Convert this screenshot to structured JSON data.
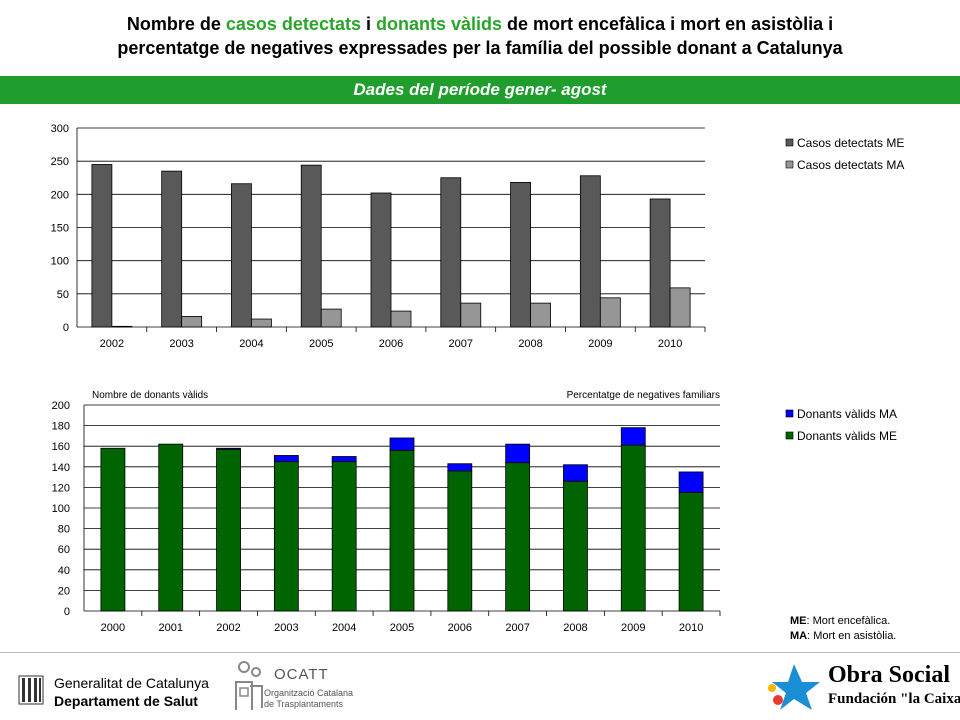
{
  "title": {
    "p1": "Nombre de ",
    "h1": "casos detectats",
    "p2": " i ",
    "h2": "donants vàlids",
    "p3": " de mort encefàlica i mort en asistòlia i",
    "line2": "percentatge de negatives expressades per la família del possible donant a Catalunya"
  },
  "band_text": "Dades del període gener- agost",
  "colors": {
    "band": "#1f9e2e",
    "highlight": "#2aa52a",
    "casos_me": "#595959",
    "casos_ma": "#969696",
    "donants_me": "#006400",
    "donants_ma": "#0000ff"
  },
  "chart_data": [
    {
      "type": "bar",
      "categories": [
        "2002",
        "2003",
        "2004",
        "2005",
        "2006",
        "2007",
        "2008",
        "2009",
        "2010"
      ],
      "series": [
        {
          "name": "Casos detectats ME",
          "values": [
            245,
            235,
            216,
            244,
            202,
            225,
            218,
            228,
            193
          ]
        },
        {
          "name": "Casos detectats MA",
          "values": [
            1,
            16,
            12,
            27,
            24,
            36,
            36,
            44,
            59
          ]
        }
      ],
      "ylim": [
        0,
        300
      ],
      "yticks": [
        0,
        50,
        100,
        150,
        200,
        250,
        300
      ],
      "grid": true,
      "legend": "right"
    },
    {
      "type": "bar",
      "stacked": true,
      "categories": [
        "2000",
        "2001",
        "2002",
        "2003",
        "2004",
        "2005",
        "2006",
        "2007",
        "2008",
        "2009",
        "2010"
      ],
      "series": [
        {
          "name": "Donants vàlids ME",
          "values": [
            158,
            162,
            157,
            145,
            145,
            156,
            136,
            144,
            126,
            161,
            115
          ]
        },
        {
          "name": "Donants vàlids MA",
          "values": [
            0,
            0,
            1,
            6,
            5,
            12,
            7,
            18,
            16,
            17,
            20
          ]
        }
      ],
      "ylim": [
        0,
        200
      ],
      "yticks": [
        0,
        20,
        40,
        60,
        80,
        100,
        120,
        140,
        160,
        180,
        200
      ],
      "ylabel_left": "Nombre de donants vàlids",
      "ylabel_right": "Percentatge de negatives familiars",
      "grid": true,
      "legend": "right"
    }
  ],
  "notes": {
    "me_abbr": "ME",
    "me_text": ": Mort encefàlica.",
    "ma_abbr": "MA",
    "ma_text": ": Mort en asistòlia."
  },
  "footer": {
    "gencat_line1": "Generalitat de Catalunya",
    "gencat_line2": "Departament de Salut",
    "ocatt_name": "OCATT",
    "ocatt_sub1": "Organització Catalana",
    "ocatt_sub2": "de Trasplantaments",
    "obra_line1": "Obra Social",
    "obra_line2": "Fundación \"la Caixa\""
  }
}
